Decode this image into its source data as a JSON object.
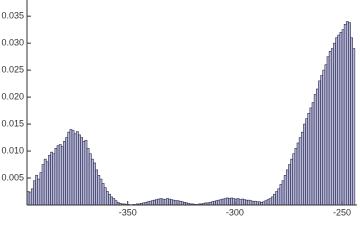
{
  "chart_data": {
    "type": "histogram",
    "bins": [
      -397,
      -396,
      -395,
      -394,
      -393,
      -392,
      -391,
      -390,
      -389,
      -388,
      -387,
      -386,
      -385,
      -384,
      -383,
      -382,
      -381,
      -380,
      -379,
      -378,
      -377,
      -376,
      -375,
      -374,
      -373,
      -372,
      -371,
      -370,
      -369,
      -368,
      -367,
      -366,
      -365,
      -364,
      -363,
      -362,
      -361,
      -360,
      -359,
      -358,
      -357,
      -356,
      -355,
      -354,
      -353,
      -352,
      -351,
      -350,
      -349,
      -348,
      -347,
      -346,
      -345,
      -344,
      -343,
      -342,
      -341,
      -340,
      -339,
      -338,
      -337,
      -336,
      -335,
      -334,
      -333,
      -332,
      -331,
      -330,
      -329,
      -328,
      -327,
      -326,
      -325,
      -324,
      -323,
      -322,
      -321,
      -320,
      -319,
      -318,
      -317,
      -316,
      -315,
      -314,
      -313,
      -312,
      -311,
      -310,
      -309,
      -308,
      -307,
      -306,
      -305,
      -304,
      -303,
      -302,
      -301,
      -300,
      -299,
      -298,
      -297,
      -296,
      -295,
      -294,
      -293,
      -292,
      -291,
      -290,
      -289,
      -288,
      -287,
      -286,
      -285,
      -284,
      -283,
      -282,
      -281,
      -280,
      -279,
      -278,
      -277,
      -276,
      -275,
      -274,
      -273,
      -272,
      -271,
      -270,
      -269,
      -268,
      -267,
      -266,
      -265,
      -264,
      -263,
      -262,
      -261,
      -260,
      -259,
      -258,
      -257,
      -256,
      -255,
      -254,
      -253,
      -252,
      -251,
      -250,
      -249,
      -248,
      -247,
      -246,
      -245,
      -244
    ],
    "values": [
      0.0025,
      0.0024,
      0.003,
      0.0045,
      0.0055,
      0.0048,
      0.006,
      0.0075,
      0.0085,
      0.008,
      0.0092,
      0.0098,
      0.0095,
      0.0105,
      0.011,
      0.0112,
      0.0108,
      0.0118,
      0.0125,
      0.0135,
      0.014,
      0.0138,
      0.0132,
      0.0136,
      0.013,
      0.0125,
      0.0118,
      0.012,
      0.0105,
      0.0095,
      0.0085,
      0.0078,
      0.0065,
      0.0055,
      0.0048,
      0.004,
      0.0032,
      0.0025,
      0.002,
      0.0015,
      0.0012,
      0.0008,
      0.0005,
      0.0003,
      0.0002,
      0.0002,
      0.0001,
      0.0001,
      0,
      0.0001,
      0.0001,
      0.0002,
      0.0002,
      0.0003,
      0.0004,
      0.0005,
      0.0006,
      0.0007,
      0.0008,
      0.0009,
      0.001,
      0.0011,
      0.0012,
      0.0011,
      0.001,
      0.0012,
      0.0011,
      0.001,
      0.0009,
      0.0008,
      0.0008,
      0.0007,
      0.0006,
      0.0005,
      0.0004,
      0.0003,
      0.0002,
      0.0002,
      0.0001,
      0.0001,
      0.0002,
      0.0002,
      0.0003,
      0.0004,
      0.0004,
      0.0005,
      0.0006,
      0.0007,
      0.0008,
      0.0009,
      0.001,
      0.0011,
      0.0012,
      0.0013,
      0.0012,
      0.0013,
      0.0012,
      0.0011,
      0.0012,
      0.001,
      0.0011,
      0.001,
      0.0009,
      0.0009,
      0.0008,
      0.0007,
      0.0007,
      0.0006,
      0.0006,
      0.0005,
      0.0006,
      0.0008,
      0.001,
      0.0012,
      0.0015,
      0.002,
      0.0025,
      0.003,
      0.0038,
      0.0045,
      0.0055,
      0.0065,
      0.0075,
      0.0085,
      0.0095,
      0.0105,
      0.0115,
      0.0125,
      0.0135,
      0.015,
      0.016,
      0.017,
      0.018,
      0.019,
      0.0205,
      0.0215,
      0.023,
      0.024,
      0.025,
      0.026,
      0.0275,
      0.0285,
      0.029,
      0.03,
      0.031,
      0.0315,
      0.032,
      0.0325,
      0.0335,
      0.034,
      0.0338,
      0.031,
      0.029
    ],
    "color": "#b9b9dc",
    "edgecolor": "#2a2a4a",
    "xlim": [
      -397,
      -243
    ],
    "ylim": [
      0,
      0.038
    ],
    "xticks": [
      -350,
      -300,
      -250
    ],
    "yticks": [
      0.005,
      {
        "value": 0.01,
        "label": "0.010"
      },
      0.015,
      {
        "value": 0.02,
        "label": "0.020"
      },
      0.025,
      {
        "value": 0.03,
        "label": "0.030"
      },
      0.035
    ]
  }
}
